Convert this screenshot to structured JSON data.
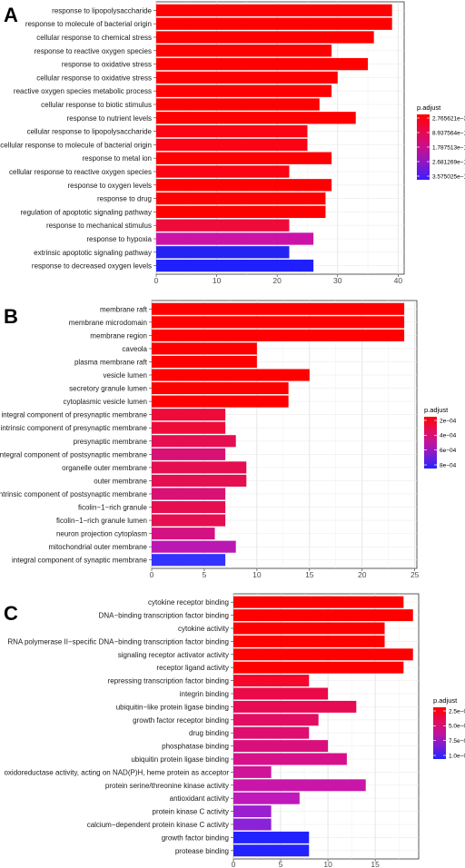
{
  "chart_data": [
    {
      "panel": "A",
      "type": "bar",
      "orientation": "horizontal",
      "categories": [
        "response to lipopolysaccharide",
        "response to molecule of bacterial origin",
        "cellular response to chemical stress",
        "response to reactive oxygen species",
        "response to oxidative stress",
        "cellular response to oxidative stress",
        "reactive oxygen species metabolic process",
        "cellular response to biotic stimulus",
        "response to nutrient levels",
        "cellular response to lipopolysaccharide",
        "cellular response to molecule of bacterial origin",
        "response to metal ion",
        "cellular response to reactive oxygen species",
        "response to oxygen levels",
        "response to drug",
        "regulation of apoptotic signaling pathway",
        "response to mechanical stimulus",
        "response to hypoxia",
        "extrinsic apoptotic signaling pathway",
        "response to decreased oxygen levels"
      ],
      "values": [
        39,
        39,
        36,
        29,
        35,
        30,
        29,
        27,
        33,
        25,
        25,
        29,
        22,
        29,
        28,
        28,
        22,
        26,
        22,
        26
      ],
      "colors": [
        "#ff0000",
        "#ff0000",
        "#ff0000",
        "#ff0000",
        "#ff0000",
        "#ff0000",
        "#ff0000",
        "#ff0000",
        "#ff0000",
        "#fb0312",
        "#fb0312",
        "#ff0000",
        "#fb0312",
        "#ff0000",
        "#ff0000",
        "#ff0000",
        "#ee0b3a",
        "#cc13a8",
        "#2424f2",
        "#2020ff"
      ],
      "xticks": [
        0,
        10,
        20,
        30,
        40
      ],
      "xlim": [
        0,
        41
      ],
      "legend": {
        "title": "p.adjust",
        "labels": [
          "2.765621e−34",
          "8.937564e−18",
          "1.787513e−17",
          "2.681269e−17",
          "3.575025e−17"
        ]
      }
    },
    {
      "panel": "B",
      "type": "bar",
      "orientation": "horizontal",
      "categories": [
        "membrane raft",
        "membrane microdomain",
        "membrane region",
        "caveola",
        "plasma membrane raft",
        "vesicle lumen",
        "secretory granule lumen",
        "cytoplasmic vesicle lumen",
        "integral component of presynaptic membrane",
        "intrinsic component of presynaptic membrane",
        "presynaptic membrane",
        "integral component of postsynaptic membrane",
        "organelle outer membrane",
        "outer membrane",
        "intrinsic component of postsynaptic membrane",
        "ficolin−1−rich granule",
        "ficolin−1−rich granule lumen",
        "neuron projection cytoplasm",
        "mitochondrial outer membrane",
        "integral component of synaptic membrane"
      ],
      "values": [
        24,
        24,
        24,
        10,
        10,
        15,
        13,
        13,
        7,
        7,
        8,
        7,
        9,
        9,
        7,
        7,
        7,
        6,
        8,
        7
      ],
      "colors": [
        "#ff0000",
        "#ff0000",
        "#ff0000",
        "#ff0000",
        "#ff0000",
        "#ff0000",
        "#ff0000",
        "#ff0000",
        "#ee0b3a",
        "#ee0b3a",
        "#e40e50",
        "#d81174",
        "#e40e50",
        "#e40e50",
        "#d81174",
        "#e40e50",
        "#e40e50",
        "#d41180",
        "#bb18b3",
        "#3333ff"
      ],
      "xticks": [
        0,
        5,
        10,
        15,
        20,
        25
      ],
      "xlim": [
        0,
        25.2
      ],
      "legend": {
        "title": "p.adjust",
        "labels": [
          "2e−04",
          "4e−04",
          "6e−04",
          "8e−04"
        ]
      }
    },
    {
      "panel": "C",
      "type": "bar",
      "orientation": "horizontal",
      "categories": [
        "cytokine receptor binding",
        "DNA−binding transcription factor binding",
        "cytokine activity",
        "RNA polymerase II−specific DNA−binding transcription factor binding",
        "signaling receptor activator activity",
        "receptor ligand activity",
        "repressing transcription factor binding",
        "integrin binding",
        "ubiquitin−like protein ligase binding",
        "growth factor receptor binding",
        "drug binding",
        "phosphatase binding",
        "ubiquitin protein ligase binding",
        "oxidoreductase activity, acting on NAD(P)H, heme protein as acceptor",
        "protein serine/threonine kinase activity",
        "antioxidant activity",
        "protein kinase C activity",
        "calcium−dependent protein kinase C activity",
        "growth factor binding",
        "protease binding"
      ],
      "values": [
        18,
        19,
        16,
        16,
        19,
        18,
        8,
        10,
        13,
        9,
        8,
        10,
        12,
        4,
        14,
        7,
        4,
        4,
        8,
        8
      ],
      "colors": [
        "#ff0000",
        "#ff0000",
        "#ff0000",
        "#ff0000",
        "#ff0000",
        "#ff0000",
        "#f5062a",
        "#ea0a48",
        "#e60b52",
        "#e10d62",
        "#dd0e70",
        "#d9107c",
        "#d6118a",
        "#cf1498",
        "#ca16a8",
        "#c018bb",
        "#9b1fd0",
        "#8a22d8",
        "#2222ff",
        "#2222ff"
      ],
      "xticks": [
        0,
        5,
        10,
        15
      ],
      "xlim": [
        0,
        19.6
      ],
      "legend": {
        "title": "p.adjust",
        "labels": [
          "2.5e−05",
          "5.0e−05",
          "7.5e−05",
          "1.0e−04"
        ]
      }
    }
  ]
}
